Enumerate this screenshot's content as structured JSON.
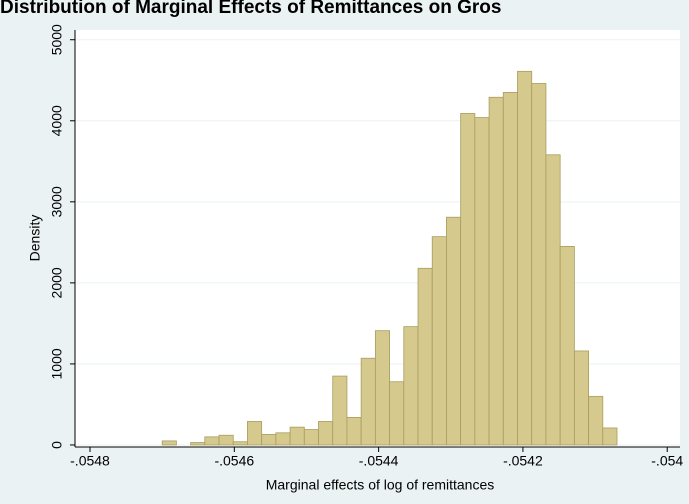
{
  "chart_data": {
    "type": "histogram",
    "title": "Distribution of Marginal Effects of Remittances on Gros",
    "x_label": "Marginal effects of log of remittances",
    "y_label": "Density",
    "bins": [
      -0.0547,
      -0.0546803,
      -0.0546606,
      -0.0546409,
      -0.0546212,
      -0.0546015,
      -0.0545818,
      -0.0545621,
      -0.0545424,
      -0.0545227,
      -0.054503,
      -0.0544833,
      -0.0544636,
      -0.0544439,
      -0.0544242,
      -0.0544045,
      -0.0543848,
      -0.0543651,
      -0.0543454,
      -0.0543257,
      -0.054306,
      -0.0542863,
      -0.0542666,
      -0.0542469,
      -0.0542272,
      -0.0542075,
      -0.0541878,
      -0.0541681,
      -0.0541484,
      -0.0541287,
      -0.054109,
      -0.0540893,
      -0.0540696
    ],
    "values": [
      50,
      0,
      30,
      100,
      120,
      40,
      290,
      130,
      150,
      220,
      190,
      290,
      850,
      340,
      1070,
      1410,
      780,
      1460,
      2180,
      2570,
      2810,
      4090,
      4040,
      4290,
      4350,
      4610,
      4460,
      3580,
      2450,
      1160,
      600,
      210
    ],
    "color": "#d5c98d",
    "edge_color": "#a89c5e",
    "xlim": [
      -0.0548208,
      -0.0539823
    ],
    "xticks": [
      {
        "value": -0.0548,
        "label": "-.0548"
      },
      {
        "value": -0.0546,
        "label": "-.0546"
      },
      {
        "value": -0.0544,
        "label": "-.0544"
      },
      {
        "value": -0.0542,
        "label": "-.0542"
      },
      {
        "value": -0.054,
        "label": "-.054"
      }
    ],
    "ylim": [
      -25,
      5120
    ],
    "yticks": [
      0,
      1000,
      2000,
      3000,
      4000,
      5000
    ],
    "grid": true
  }
}
